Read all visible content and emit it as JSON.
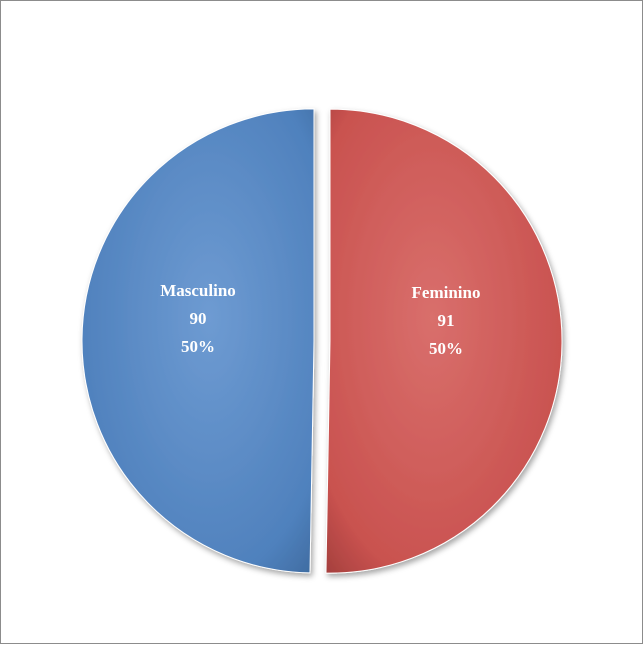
{
  "chart_data": {
    "type": "pie",
    "title": "",
    "categories": [
      "Masculino",
      "Feminino"
    ],
    "values": [
      90,
      91
    ],
    "percent_labels": [
      "50%",
      "50%"
    ],
    "colors": [
      "#4f81bd",
      "#c0504d"
    ],
    "legend": "none",
    "exploded": true
  }
}
